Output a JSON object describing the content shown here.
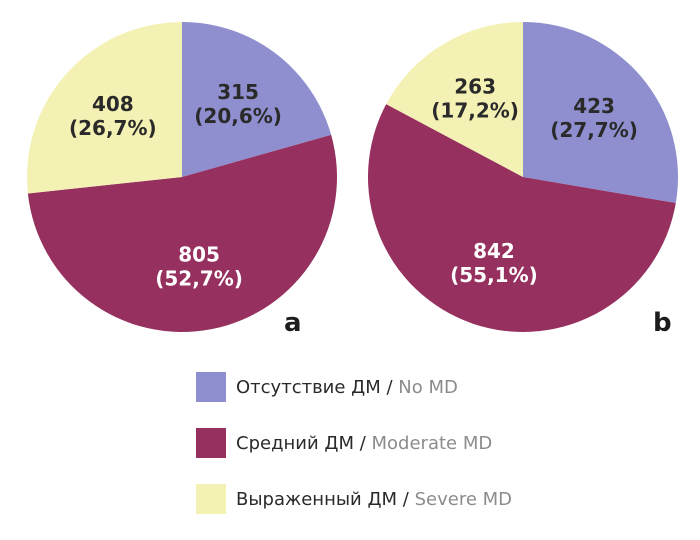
{
  "chart_data": [
    {
      "type": "pie",
      "panel": "a",
      "categories": [
        "Отсутствие ДМ / No MD",
        "Средний ДМ / Moderate MD",
        "Выраженный ДМ / Severe MD"
      ],
      "values": [
        315,
        805,
        408
      ],
      "value_labels": [
        "315",
        "805",
        "408"
      ],
      "percent_labels": [
        "(20,6%)",
        "(52,7%)",
        "(26,7%)"
      ]
    },
    {
      "type": "pie",
      "panel": "b",
      "categories": [
        "Отсутствие ДМ / No MD",
        "Средний ДМ / Moderate MD",
        "Выраженный ДМ / Severe MD"
      ],
      "values": [
        423,
        842,
        263
      ],
      "value_labels": [
        "423",
        "842",
        "263"
      ],
      "percent_labels": [
        "(27,7%)",
        "(55,1%)",
        "(17,2%)"
      ]
    }
  ],
  "legend": [
    {
      "ru": "Отсутствие ДМ",
      "sep": " / ",
      "en": "No MD",
      "color": "#8f8fcf"
    },
    {
      "ru": "Средний ДМ",
      "sep": " / ",
      "en": "Moderate MD",
      "color": "#96305f"
    },
    {
      "ru": "Выраженный ДМ",
      "sep": " / ",
      "en": "Severe MD",
      "color": "#f4f1b4"
    }
  ],
  "slice_colors": [
    "#8f8fcf",
    "#96305f",
    "#f4f1b4"
  ],
  "panel_labels": [
    "a",
    "b"
  ]
}
